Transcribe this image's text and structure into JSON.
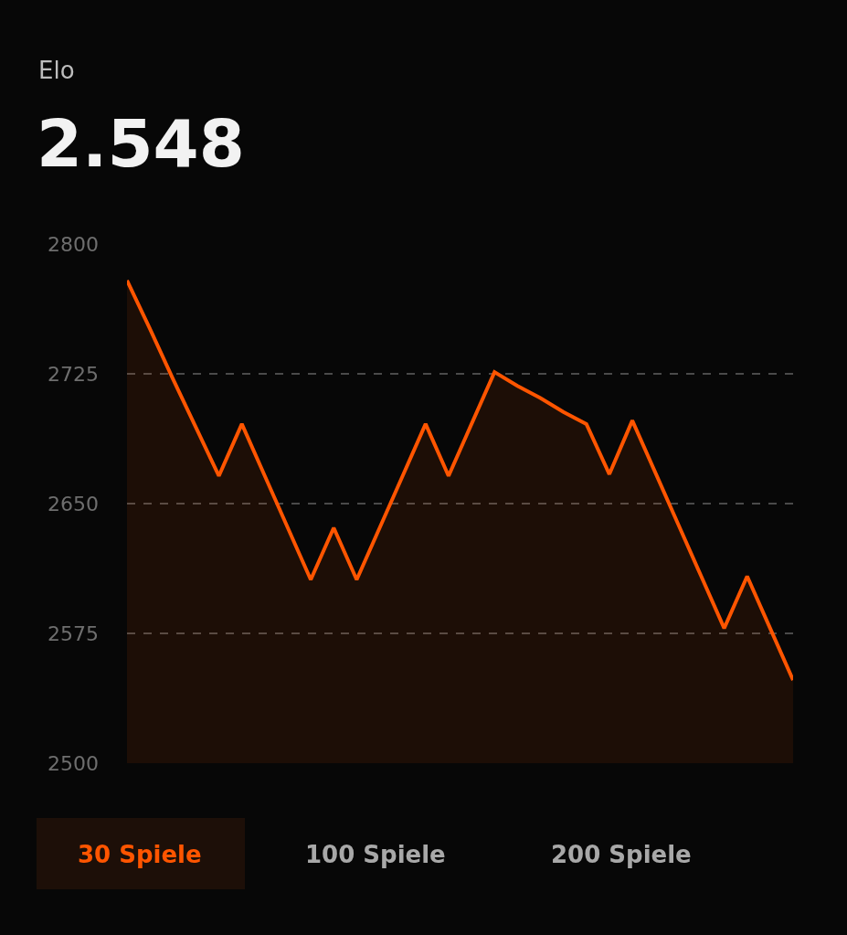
{
  "chart_data": {
    "type": "area",
    "title": "Elo",
    "subtitle": "2.548",
    "categories": [
      null,
      null,
      null,
      null,
      null,
      null,
      null,
      null,
      null,
      null,
      null,
      null,
      null,
      null,
      null,
      null,
      null,
      null,
      null,
      null,
      null,
      null,
      null,
      null,
      null,
      null,
      null,
      null,
      null,
      null
    ],
    "series": [
      {
        "color": "#ff5500",
        "values": [
          2779,
          2751,
          2722,
          2694,
          2666,
          2696,
          2666,
          2636,
          2606,
          2636,
          2606,
          2636,
          2666,
          2696,
          2666,
          2696,
          2726,
          2718,
          2711,
          2703,
          2696,
          2667,
          2698,
          2668,
          2638,
          2608,
          2578,
          2608,
          2578,
          2548
        ]
      }
    ],
    "ylim": [
      2500,
      2800
    ],
    "yticks": [
      2500,
      2575,
      2650,
      2725,
      2800
    ],
    "grid": "y",
    "tick_labels": "y",
    "marker": "none",
    "line_style": "solid",
    "annotations": [
      "30 Spiele",
      "100 Spiele",
      "200 Spiele"
    ]
  }
}
